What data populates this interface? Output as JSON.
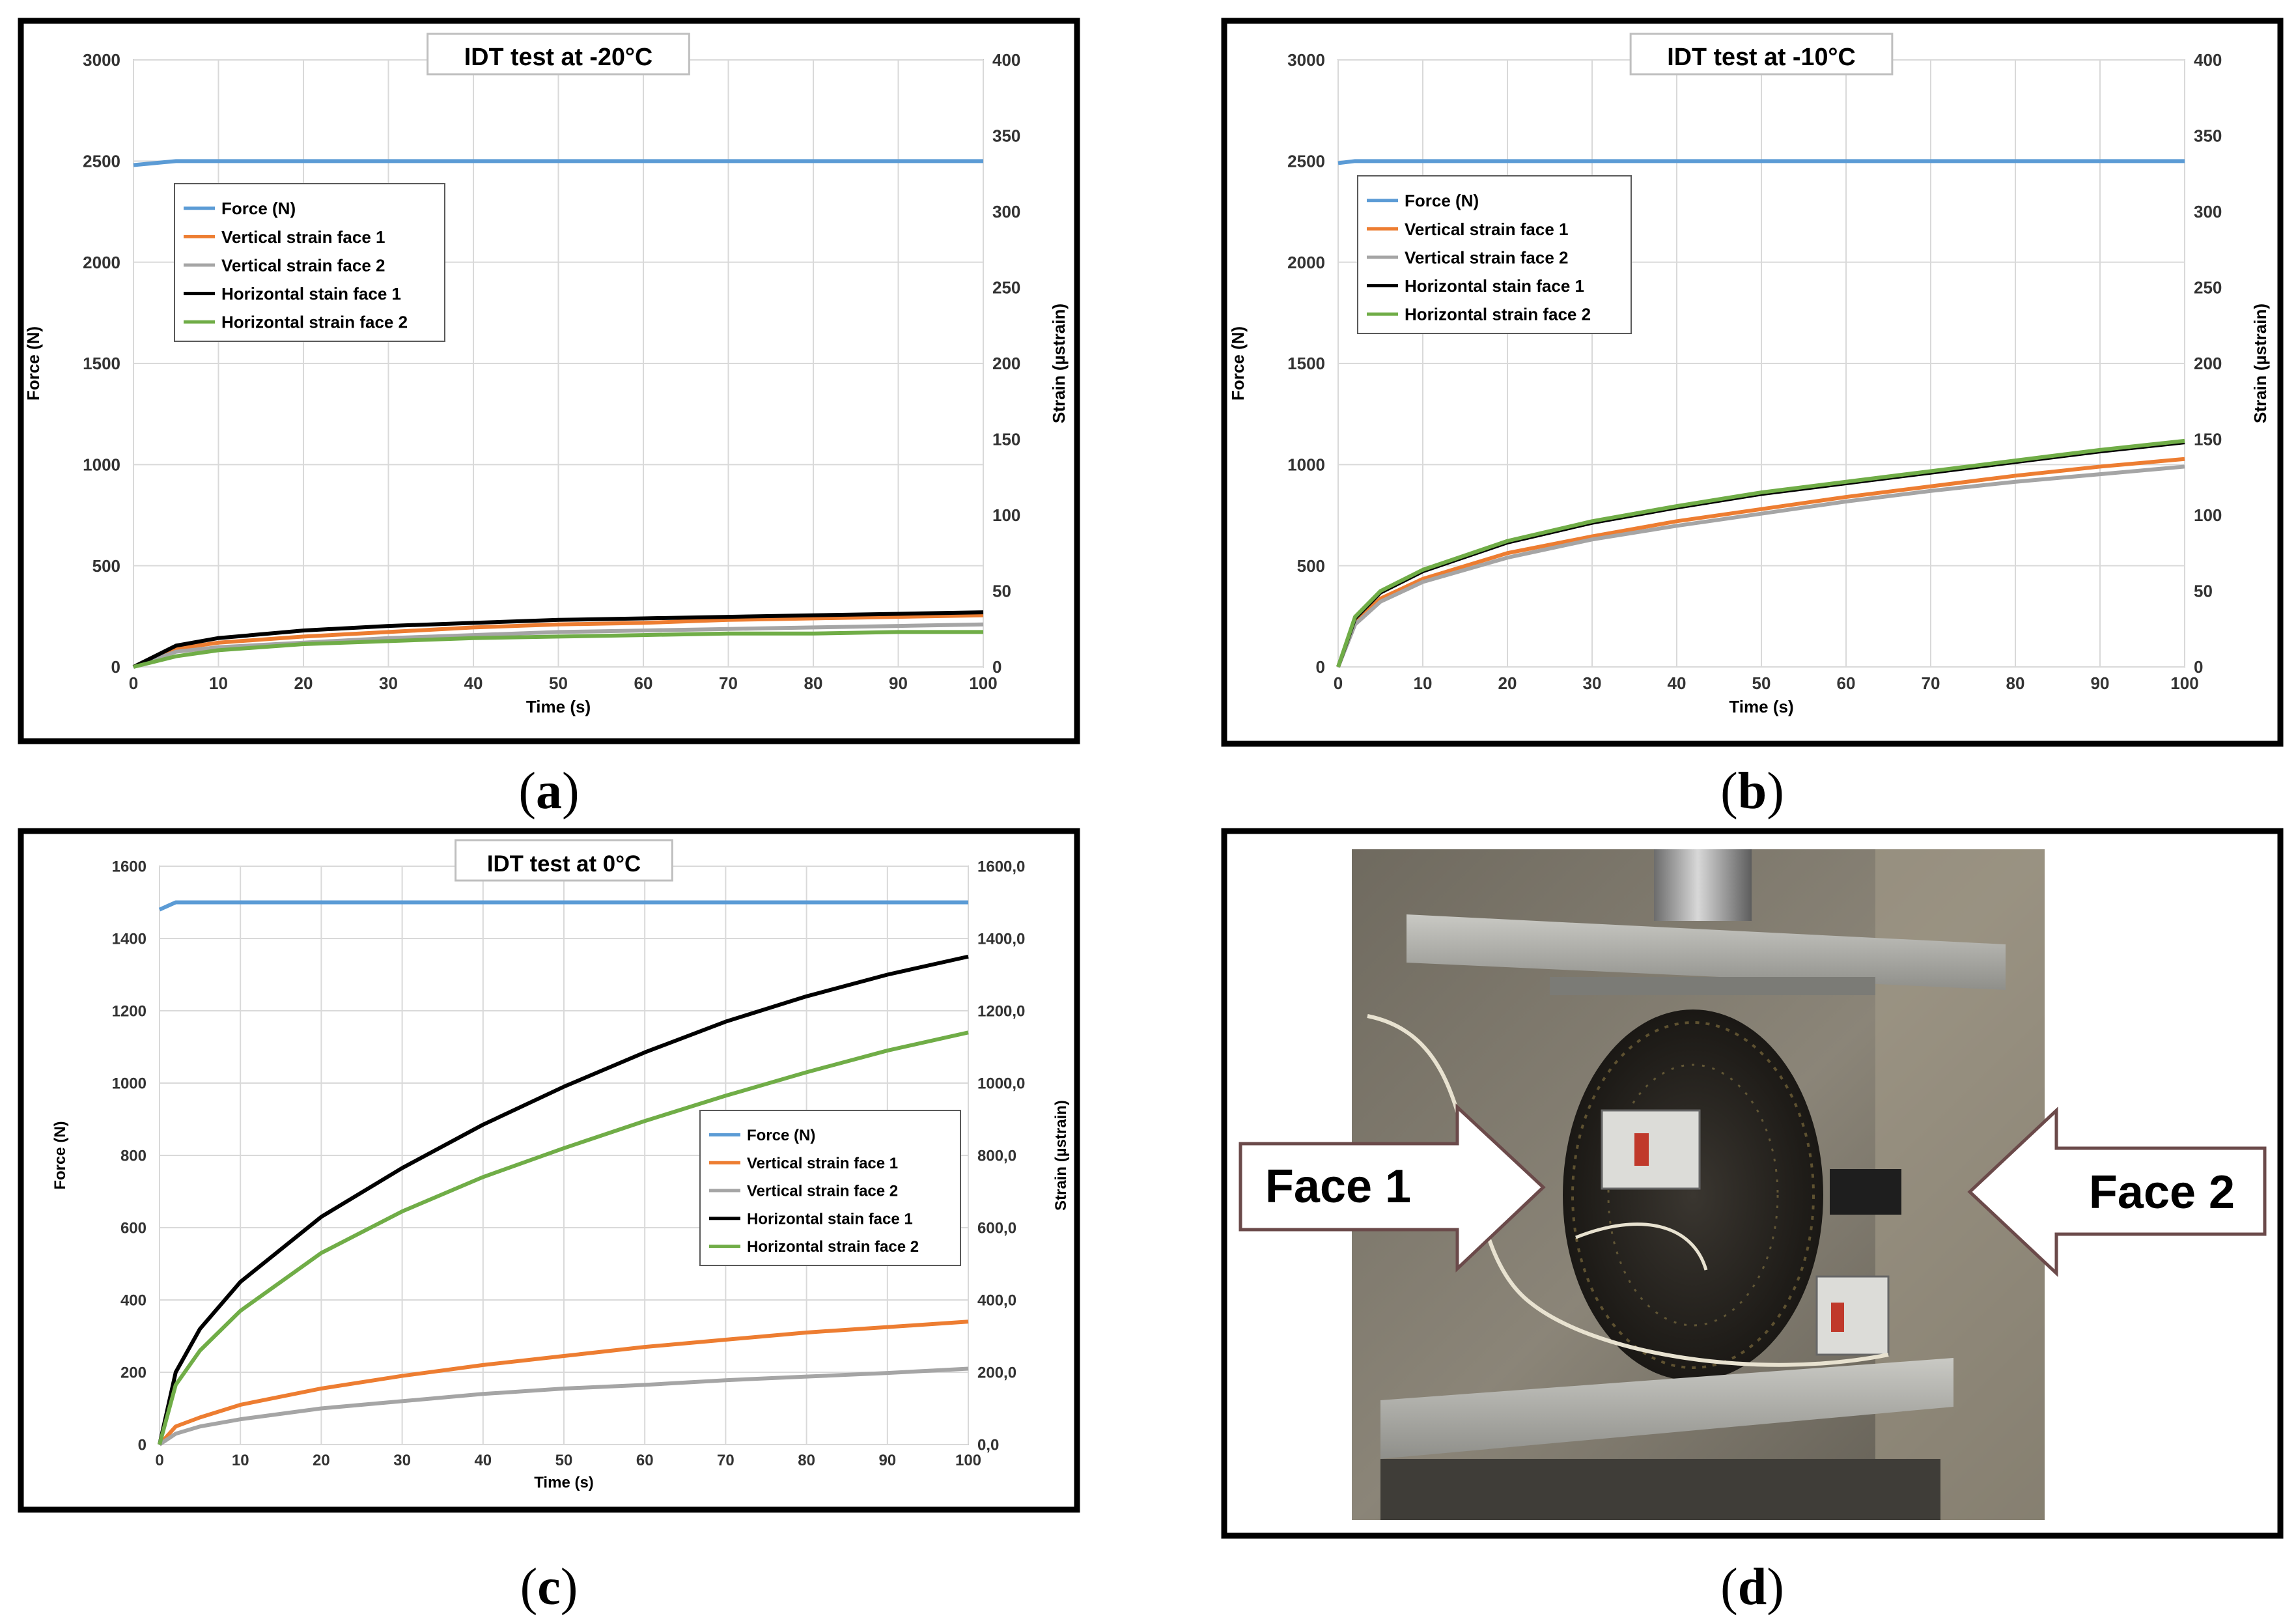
{
  "colors": {
    "force": "#5b9bd5",
    "vertical_face_1": "#ed7d31",
    "vertical_face_2": "#a5a5a5",
    "horizontal_face_1": "#000000",
    "horizontal_face_2": "#70ad47"
  },
  "captions": {
    "a": "a",
    "b": "b",
    "c": "c",
    "d": "d"
  },
  "chart_data": [
    {
      "id": "a",
      "type": "line",
      "title": "IDT test at -20°C",
      "xlabel": "Time (s)",
      "ylabel": "Force (N)",
      "y2label": "Strain (µstrain)",
      "xlim": [
        0,
        100
      ],
      "ylim": [
        0,
        3000
      ],
      "y2lim": [
        0,
        400
      ],
      "xticks": [
        "0",
        "10",
        "20",
        "30",
        "40",
        "50",
        "60",
        "70",
        "80",
        "90",
        "100"
      ],
      "yticks": [
        "0",
        "500",
        "1000",
        "1500",
        "2000",
        "2500",
        "3000"
      ],
      "y2ticks": [
        "0",
        "50",
        "100",
        "150",
        "200",
        "250",
        "300",
        "350",
        "400"
      ],
      "grid": true,
      "legend_position": "upper-left",
      "legend": [
        "Force (N)",
        "Vertical strain face 1",
        "Vertical strain face 2",
        "Horizontal stain face 1",
        "Horizontal strain face 2"
      ],
      "x": [
        0,
        5,
        10,
        20,
        30,
        40,
        50,
        60,
        70,
        80,
        90,
        100
      ],
      "series": [
        {
          "name": "Force (N)",
          "axis": "left",
          "values": [
            2480,
            2500,
            2500,
            2500,
            2500,
            2500,
            2500,
            2500,
            2500,
            2500,
            2500,
            2500
          ]
        },
        {
          "name": "Vertical strain face 1",
          "axis": "right",
          "values": [
            0,
            12,
            16,
            20,
            23,
            26,
            28,
            29,
            31,
            32,
            33,
            34
          ]
        },
        {
          "name": "Vertical strain face 2",
          "axis": "right",
          "values": [
            0,
            10,
            13,
            16,
            19,
            21,
            23,
            24,
            25,
            26,
            27,
            28
          ]
        },
        {
          "name": "Horizontal stain face 1",
          "axis": "right",
          "values": [
            0,
            14,
            19,
            24,
            27,
            29,
            31,
            32,
            33,
            34,
            35,
            36
          ]
        },
        {
          "name": "Horizontal strain face 2",
          "axis": "right",
          "values": [
            0,
            7,
            11,
            15,
            17,
            19,
            20,
            21,
            22,
            22,
            23,
            23
          ]
        }
      ]
    },
    {
      "id": "b",
      "type": "line",
      "title": "IDT test at -10°C",
      "xlabel": "Time (s)",
      "ylabel": "Force (N)",
      "y2label": "Strain (µstrain)",
      "xlim": [
        0,
        100
      ],
      "ylim": [
        0,
        3000
      ],
      "y2lim": [
        0,
        400
      ],
      "xticks": [
        "0",
        "10",
        "20",
        "30",
        "40",
        "50",
        "60",
        "70",
        "80",
        "90",
        "100"
      ],
      "yticks": [
        "0",
        "500",
        "1000",
        "1500",
        "2000",
        "2500",
        "3000"
      ],
      "y2ticks": [
        "0",
        "50",
        "100",
        "150",
        "200",
        "250",
        "300",
        "350",
        "400"
      ],
      "grid": true,
      "legend_position": "upper-left",
      "legend": [
        "Force (N)",
        "Vertical strain face 1",
        "Vertical strain face 2",
        "Horizontal stain face 1",
        "Horizontal strain face 2"
      ],
      "x": [
        0,
        2,
        5,
        10,
        20,
        30,
        40,
        50,
        60,
        70,
        80,
        90,
        100
      ],
      "series": [
        {
          "name": "Force (N)",
          "axis": "left",
          "values": [
            2490,
            2500,
            2500,
            2500,
            2500,
            2500,
            2500,
            2500,
            2500,
            2500,
            2500,
            2500,
            2500
          ]
        },
        {
          "name": "Vertical strain face 1",
          "axis": "right",
          "values": [
            0,
            30,
            45,
            58,
            75,
            86,
            96,
            104,
            112,
            119,
            126,
            132,
            137
          ]
        },
        {
          "name": "Vertical strain face 2",
          "axis": "right",
          "values": [
            0,
            28,
            43,
            56,
            72,
            84,
            93,
            101,
            109,
            116,
            122,
            127,
            132
          ]
        },
        {
          "name": "Horizontal stain face 1",
          "axis": "right",
          "values": [
            0,
            32,
            49,
            63,
            82,
            95,
            105,
            114,
            121,
            128,
            135,
            142,
            148
          ]
        },
        {
          "name": "Horizontal strain face 2",
          "axis": "right",
          "values": [
            0,
            33,
            50,
            64,
            83,
            96,
            106,
            115,
            122,
            129,
            136,
            143,
            149
          ]
        }
      ]
    },
    {
      "id": "c",
      "type": "line",
      "title": "IDT test at 0°C",
      "xlabel": "Time (s)",
      "ylabel": "Force (N)",
      "y2label": "Strain (µstrain)",
      "xlim": [
        0,
        100
      ],
      "ylim": [
        0,
        1600
      ],
      "y2lim": [
        0,
        1600
      ],
      "xticks": [
        "0",
        "10",
        "20",
        "30",
        "40",
        "50",
        "60",
        "70",
        "80",
        "90",
        "100"
      ],
      "yticks": [
        "0",
        "200",
        "400",
        "600",
        "800",
        "1000",
        "1200",
        "1400",
        "1600"
      ],
      "y2ticks": [
        "0,0",
        "200,0",
        "400,0",
        "600,0",
        "800,0",
        "1000,0",
        "1200,0",
        "1400,0",
        "1600,0"
      ],
      "grid": true,
      "legend_position": "right",
      "legend": [
        "Force (N)",
        "Vertical strain face 1",
        "Vertical strain face 2",
        "Horizontal stain face 1",
        "Horizontal strain face 2"
      ],
      "x": [
        0,
        2,
        5,
        10,
        20,
        30,
        40,
        50,
        60,
        70,
        80,
        90,
        100
      ],
      "series": [
        {
          "name": "Force (N)",
          "axis": "left",
          "values": [
            1480,
            1500,
            1500,
            1500,
            1500,
            1500,
            1500,
            1500,
            1500,
            1500,
            1500,
            1500,
            1500
          ]
        },
        {
          "name": "Vertical strain face 1",
          "axis": "right",
          "values": [
            0,
            50,
            75,
            110,
            155,
            190,
            220,
            245,
            270,
            290,
            310,
            325,
            340
          ]
        },
        {
          "name": "Vertical strain face 2",
          "axis": "right",
          "values": [
            0,
            30,
            50,
            70,
            100,
            120,
            140,
            155,
            165,
            178,
            188,
            198,
            210
          ]
        },
        {
          "name": "Horizontal stain face 1",
          "axis": "right",
          "values": [
            0,
            200,
            320,
            450,
            630,
            765,
            885,
            990,
            1085,
            1170,
            1240,
            1300,
            1350
          ]
        },
        {
          "name": "Horizontal strain face 2",
          "axis": "right",
          "values": [
            0,
            165,
            260,
            370,
            530,
            645,
            740,
            820,
            895,
            965,
            1030,
            1090,
            1140
          ]
        }
      ]
    }
  ],
  "photo": {
    "id": "d",
    "arrows": {
      "face_1": "Face 1",
      "face_2": "Face 2"
    }
  }
}
